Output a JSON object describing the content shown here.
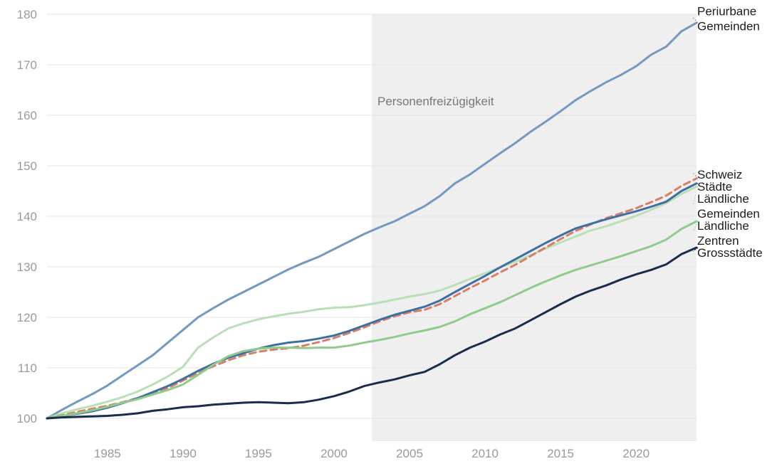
{
  "chart_data": {
    "type": "line",
    "title": "",
    "xlabel": "",
    "ylabel": "",
    "xlim": [
      1981,
      2024
    ],
    "ylim": [
      100,
      180
    ],
    "grid": true,
    "legend": "end-of-line labels",
    "x_ticks": [
      "1985",
      "1990",
      "1995",
      "2000",
      "2005",
      "2010",
      "2015",
      "2020"
    ],
    "y_ticks": [
      "100",
      "110",
      "120",
      "130",
      "140",
      "150",
      "160",
      "170",
      "180"
    ],
    "shaded_period": {
      "from": 2002.5,
      "to": 2024.5,
      "label": "Personenfreizügigkeit",
      "color": "#efefef"
    },
    "x": [
      1981,
      1982,
      1983,
      1984,
      1985,
      1986,
      1987,
      1988,
      1989,
      1990,
      1991,
      1992,
      1993,
      1994,
      1995,
      1996,
      1997,
      1998,
      1999,
      2000,
      2001,
      2002,
      2003,
      2004,
      2005,
      2006,
      2007,
      2008,
      2009,
      2010,
      2011,
      2012,
      2013,
      2014,
      2015,
      2016,
      2017,
      2018,
      2019,
      2020,
      2021,
      2022,
      2023,
      2024
    ],
    "series": [
      {
        "name": "Periurbane Gemeinden",
        "label_lines": [
          "Periurbane",
          "Gemeinden"
        ],
        "color": "#7398c1",
        "dashed": false,
        "values": [
          100,
          101.7,
          103.3,
          104.8,
          106.5,
          108.5,
          110.5,
          112.5,
          115,
          117.5,
          120,
          121.8,
          123.5,
          125,
          126.5,
          128,
          129.5,
          130.8,
          132,
          133.5,
          135,
          136.5,
          137.8,
          139,
          140.5,
          142,
          144,
          146.5,
          148.3,
          150.4,
          152.5,
          154.5,
          156.7,
          158.7,
          160.8,
          163,
          164.8,
          166.5,
          168,
          169.7,
          172,
          173.6,
          176.6,
          178.3
        ]
      },
      {
        "name": "Ländliche Gemeinden",
        "label_lines": [
          "Ländliche",
          "Gemeinden"
        ],
        "color": "#b9e0b4",
        "dashed": false,
        "values": [
          100,
          101,
          101.8,
          102.5,
          103.3,
          104.2,
          105.3,
          106.7,
          108.3,
          110.2,
          114,
          116,
          117.8,
          118.8,
          119.6,
          120.2,
          120.7,
          121.1,
          121.6,
          121.9,
          122,
          122.4,
          122.9,
          123.5,
          124.1,
          124.6,
          125.3,
          126.4,
          127.6,
          128.7,
          129.9,
          131,
          132.3,
          133.6,
          134.8,
          136,
          137.2,
          138,
          139,
          140.1,
          141.3,
          142.6,
          144.4,
          145.9
        ]
      },
      {
        "name": "Schweiz",
        "label_lines": [
          "Schweiz"
        ],
        "color": "#d97d66",
        "dashed": true,
        "values": [
          100,
          100.6,
          101.3,
          101.9,
          102.5,
          103.2,
          104,
          104.8,
          106,
          107.5,
          109,
          110.3,
          111.5,
          112.5,
          113.2,
          113.6,
          113.9,
          114.4,
          115.1,
          115.9,
          116.9,
          118,
          119.2,
          120.2,
          121,
          121.5,
          122.6,
          124.2,
          125.8,
          127.3,
          128.9,
          130.4,
          132.1,
          133.8,
          135.5,
          137.1,
          138.4,
          139.6,
          140.6,
          141.6,
          142.8,
          144.1,
          146,
          147.5
        ]
      },
      {
        "name": "Städte",
        "label_lines": [
          "Städte"
        ],
        "color": "#3d6fa3",
        "dashed": false,
        "values": [
          100,
          100.5,
          100.9,
          101.4,
          102.1,
          103,
          104,
          105.2,
          106.4,
          107.8,
          109.4,
          110.8,
          112,
          112.9,
          113.8,
          114.5,
          115,
          115.3,
          115.8,
          116.4,
          117.3,
          118.4,
          119.5,
          120.5,
          121.3,
          122.1,
          123.3,
          125,
          126.6,
          128.2,
          129.9,
          131.5,
          133.1,
          134.7,
          136.2,
          137.6,
          138.5,
          139.4,
          140.2,
          141,
          141.9,
          142.9,
          145,
          146.5
        ]
      },
      {
        "name": "Ländliche Zentren",
        "label_lines": [
          "Ländliche",
          "Zentren"
        ],
        "color": "#8fcb8b",
        "dashed": false,
        "values": [
          100,
          100.5,
          101,
          101.6,
          102.3,
          103.1,
          103.8,
          104.7,
          105.6,
          106.7,
          108.6,
          110.6,
          112.3,
          113.3,
          113.8,
          114,
          114,
          113.9,
          114,
          114,
          114.4,
          115,
          115.5,
          116.1,
          116.8,
          117.4,
          118.1,
          119.2,
          120.6,
          121.8,
          123,
          124.4,
          125.8,
          127.1,
          128.3,
          129.4,
          130.3,
          131.2,
          132.1,
          133.1,
          134.1,
          135.4,
          137.5,
          139
        ]
      },
      {
        "name": "Grossstädte",
        "label_lines": [
          "Grossstädte"
        ],
        "color": "#1a2c4c",
        "dashed": false,
        "values": [
          100,
          100.2,
          100.3,
          100.4,
          100.5,
          100.7,
          101,
          101.5,
          101.8,
          102.2,
          102.4,
          102.7,
          102.9,
          103.1,
          103.2,
          103.1,
          103,
          103.2,
          103.7,
          104.4,
          105.3,
          106.4,
          107.1,
          107.7,
          108.5,
          109.2,
          110.7,
          112.5,
          114,
          115.2,
          116.6,
          117.8,
          119.4,
          121,
          122.6,
          124.1,
          125.3,
          126.3,
          127.5,
          128.5,
          129.4,
          130.5,
          132.5,
          133.8
        ]
      }
    ]
  }
}
